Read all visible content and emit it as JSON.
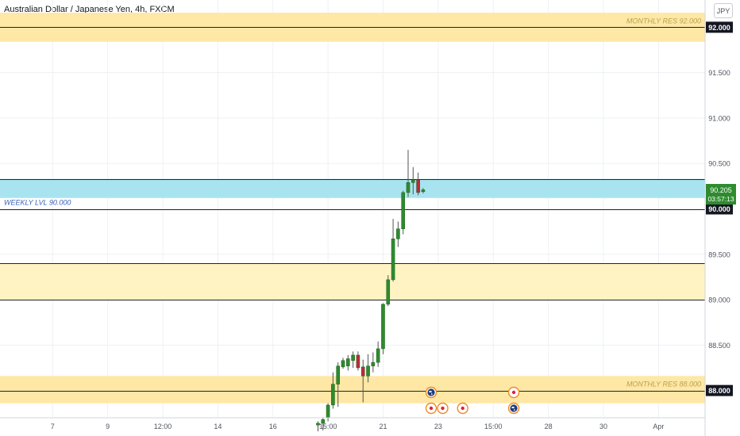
{
  "header": {
    "title": "Australian Dollar / Japanese Yen, 4h, FXCM",
    "currency_button": "JPY"
  },
  "colors": {
    "bull": "#2e8b2e",
    "bear": "#c0283a",
    "wick": "#555555",
    "zone_yellow": "#fff3c4",
    "zone_gold": "#ffe7a6",
    "zone_blue": "#a8e4ef",
    "zone_label": "#b8a24a",
    "weekly_label": "#3a63b8",
    "grid": "#eef0f3"
  },
  "chart_data": {
    "type": "candlestick",
    "title": "Australian Dollar / Japanese Yen, 4h, FXCM",
    "ylim": [
      87.7,
      92.3
    ],
    "y_ticks": [
      "92.000",
      "91.500",
      "91.000",
      "90.500",
      "90.000",
      "89.500",
      "89.000",
      "88.500",
      "88.000"
    ],
    "x_ticks": [
      "7",
      "9",
      "12:00",
      "14",
      "16",
      "15:00",
      "21",
      "23",
      "15:00",
      "28",
      "30",
      "Apr",
      "5"
    ],
    "x_tick_slots": [
      7,
      18,
      29,
      40,
      51,
      62,
      73,
      84,
      95,
      106,
      117,
      128,
      139
    ],
    "slot_range": [
      -3.5,
      137.3
    ],
    "grid": true,
    "zones": [
      {
        "top": 92.16,
        "bottom": 91.84,
        "style": "gold"
      },
      {
        "top": 89.4,
        "bottom": 89.0,
        "style": "yellow"
      },
      {
        "top": 88.16,
        "bottom": 87.86,
        "style": "gold"
      },
      {
        "top": 90.33,
        "bottom": 90.12,
        "style": "blue"
      }
    ],
    "levels": [
      {
        "value": 92.0,
        "label": "MONTHLY RES 92.000",
        "axis_label": "92.000"
      },
      {
        "value": 90.0,
        "label": "WEEKLY LVL 90.000",
        "axis_label": "90.000"
      },
      {
        "value": 88.0,
        "label": "MONTHLY RES 88.000",
        "axis_label": "88.000"
      }
    ],
    "extra_lines": [
      90.33,
      89.4,
      89.0
    ],
    "last_price": {
      "value": "90.205",
      "countdown": "03:57:13",
      "y": 90.205
    },
    "candles": [
      {
        "i": 60,
        "o": 87.62,
        "h": 87.66,
        "l": 87.55,
        "c": 87.64
      },
      {
        "i": 61,
        "o": 87.64,
        "h": 87.7,
        "l": 87.56,
        "c": 87.68
      },
      {
        "i": 62,
        "o": 87.7,
        "h": 87.86,
        "l": 87.66,
        "c": 87.84
      },
      {
        "i": 63,
        "o": 87.84,
        "h": 88.2,
        "l": 87.8,
        "c": 88.07
      },
      {
        "i": 64,
        "o": 88.07,
        "h": 88.31,
        "l": 87.82,
        "c": 88.27
      },
      {
        "i": 65,
        "o": 88.26,
        "h": 88.36,
        "l": 88.24,
        "c": 88.33
      },
      {
        "i": 66,
        "o": 88.27,
        "h": 88.39,
        "l": 88.22,
        "c": 88.35
      },
      {
        "i": 67,
        "o": 88.33,
        "h": 88.43,
        "l": 88.25,
        "c": 88.39
      },
      {
        "i": 68,
        "o": 88.39,
        "h": 88.43,
        "l": 88.22,
        "c": 88.25
      },
      {
        "i": 69,
        "o": 88.26,
        "h": 88.34,
        "l": 87.87,
        "c": 88.16
      },
      {
        "i": 70,
        "o": 88.16,
        "h": 88.4,
        "l": 88.09,
        "c": 88.27
      },
      {
        "i": 71,
        "o": 88.27,
        "h": 88.42,
        "l": 88.2,
        "c": 88.31
      },
      {
        "i": 72,
        "o": 88.31,
        "h": 88.54,
        "l": 88.26,
        "c": 88.46
      },
      {
        "i": 73,
        "o": 88.46,
        "h": 88.96,
        "l": 88.4,
        "c": 88.95
      },
      {
        "i": 74,
        "o": 88.95,
        "h": 89.27,
        "l": 88.93,
        "c": 89.22
      },
      {
        "i": 75,
        "o": 89.22,
        "h": 89.89,
        "l": 89.2,
        "c": 89.67
      },
      {
        "i": 76,
        "o": 89.67,
        "h": 89.86,
        "l": 89.58,
        "c": 89.78
      },
      {
        "i": 77,
        "o": 89.78,
        "h": 90.2,
        "l": 89.72,
        "c": 90.18
      },
      {
        "i": 78,
        "o": 90.18,
        "h": 90.65,
        "l": 90.13,
        "c": 90.29
      },
      {
        "i": 79,
        "o": 90.29,
        "h": 90.46,
        "l": 90.16,
        "c": 90.32
      },
      {
        "i": 80,
        "o": 90.32,
        "h": 90.4,
        "l": 90.15,
        "c": 90.18
      },
      {
        "i": 81,
        "o": 90.19,
        "h": 90.23,
        "l": 90.17,
        "c": 90.21
      }
    ],
    "events": [
      {
        "slot": 82.6,
        "row": 1,
        "kind": "flag"
      },
      {
        "slot": 82.6,
        "row": 2,
        "kind": "dot"
      },
      {
        "slot": 84.9,
        "row": 2,
        "kind": "dot"
      },
      {
        "slot": 88.9,
        "row": 2,
        "kind": "dot"
      },
      {
        "slot": 99.1,
        "row": 1,
        "kind": "dot"
      },
      {
        "slot": 99.1,
        "row": 2,
        "kind": "flag"
      }
    ]
  }
}
